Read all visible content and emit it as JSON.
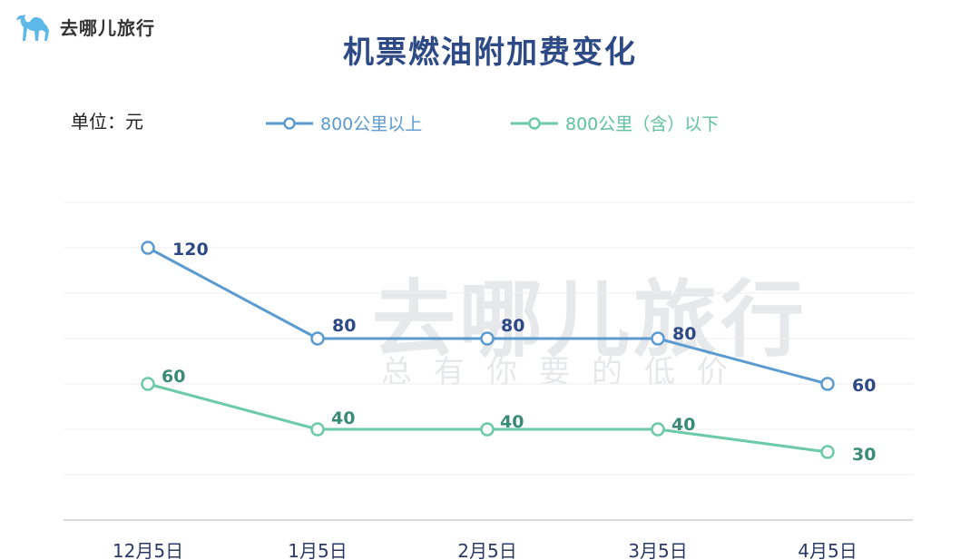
{
  "brand": {
    "name": "去哪儿旅行",
    "logo_icon": "camel-icon",
    "color": "#5bb8e8"
  },
  "watermark": {
    "main": "去哪儿旅行",
    "sub": "总有你要的低价"
  },
  "chart_data": {
    "type": "line",
    "title": "机票燃油附加费变化",
    "unit_label": "单位：元",
    "categories": [
      "12月5日",
      "1月5日",
      "2月5日",
      "3月5日",
      "4月5日"
    ],
    "ylim": [
      0,
      150
    ],
    "grid": true,
    "legend_position": "top",
    "series": [
      {
        "name": "800公里以上",
        "values": [
          120,
          80,
          80,
          80,
          60
        ],
        "color": "#5b9bd0",
        "label_color": "#2e4a86"
      },
      {
        "name": "800公里（含）以下",
        "values": [
          60,
          40,
          40,
          40,
          30
        ],
        "color": "#6ccaa8",
        "label_color": "#3a8a78"
      }
    ]
  }
}
